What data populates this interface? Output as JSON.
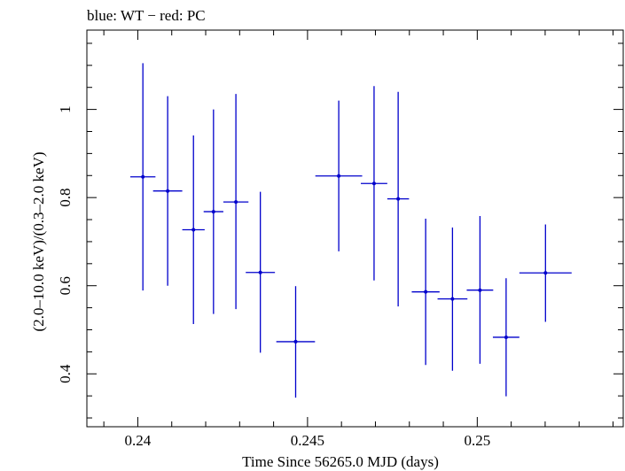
{
  "chart_data": {
    "type": "scatter",
    "title": "blue: WT − red: PC",
    "xlabel": "Time Since 56265.0 MJD (days)",
    "ylabel": "(2.0–10.0 keV)/(0.3–2.0 keV)",
    "xlim": [
      0.2385,
      0.2543
    ],
    "ylim": [
      0.28,
      1.18
    ],
    "x_ticks": [
      {
        "value": 0.24,
        "label": "0.24"
      },
      {
        "value": 0.245,
        "label": "0.245"
      },
      {
        "value": 0.25,
        "label": "0.25"
      }
    ],
    "y_ticks": [
      {
        "value": 0.4,
        "label": "0.4"
      },
      {
        "value": 0.6,
        "label": "0.6"
      },
      {
        "value": 0.8,
        "label": "0.8"
      },
      {
        "value": 1.0,
        "label": "1"
      }
    ],
    "grid": false,
    "series": [
      {
        "color": "#0000cc",
        "marker": "point-with-errorbars",
        "points": [
          {
            "x": 0.24015,
            "xerr": 0.00037,
            "y": 0.847,
            "y_low": 0.589,
            "y_high": 1.105
          },
          {
            "x": 0.24088,
            "xerr": 0.00043,
            "y": 0.815,
            "y_low": 0.6,
            "y_high": 1.03
          },
          {
            "x": 0.24164,
            "xerr": 0.00033,
            "y": 0.727,
            "y_low": 0.513,
            "y_high": 0.941
          },
          {
            "x": 0.24223,
            "xerr": 0.00029,
            "y": 0.768,
            "y_low": 0.536,
            "y_high": 1.0
          },
          {
            "x": 0.24289,
            "xerr": 0.00037,
            "y": 0.79,
            "y_low": 0.547,
            "y_high": 1.035
          },
          {
            "x": 0.24361,
            "xerr": 0.00043,
            "y": 0.63,
            "y_low": 0.448,
            "y_high": 0.813
          },
          {
            "x": 0.24465,
            "xerr": 0.00057,
            "y": 0.473,
            "y_low": 0.346,
            "y_high": 0.599
          },
          {
            "x": 0.24592,
            "xerr": 0.00069,
            "y": 0.849,
            "y_low": 0.678,
            "y_high": 1.02
          },
          {
            "x": 0.24696,
            "xerr": 0.00039,
            "y": 0.832,
            "y_low": 0.612,
            "y_high": 1.053
          },
          {
            "x": 0.24767,
            "xerr": 0.00032,
            "y": 0.797,
            "y_low": 0.553,
            "y_high": 1.04
          },
          {
            "x": 0.24848,
            "xerr": 0.00041,
            "y": 0.586,
            "y_low": 0.42,
            "y_high": 0.752
          },
          {
            "x": 0.24927,
            "xerr": 0.00044,
            "y": 0.57,
            "y_low": 0.407,
            "y_high": 0.732
          },
          {
            "x": 0.25008,
            "xerr": 0.00039,
            "y": 0.59,
            "y_low": 0.423,
            "y_high": 0.758
          },
          {
            "x": 0.25085,
            "xerr": 0.00039,
            "y": 0.483,
            "y_low": 0.349,
            "y_high": 0.617
          },
          {
            "x": 0.25201,
            "xerr": 0.00077,
            "y": 0.629,
            "y_low": 0.518,
            "y_high": 0.739
          }
        ]
      }
    ]
  }
}
